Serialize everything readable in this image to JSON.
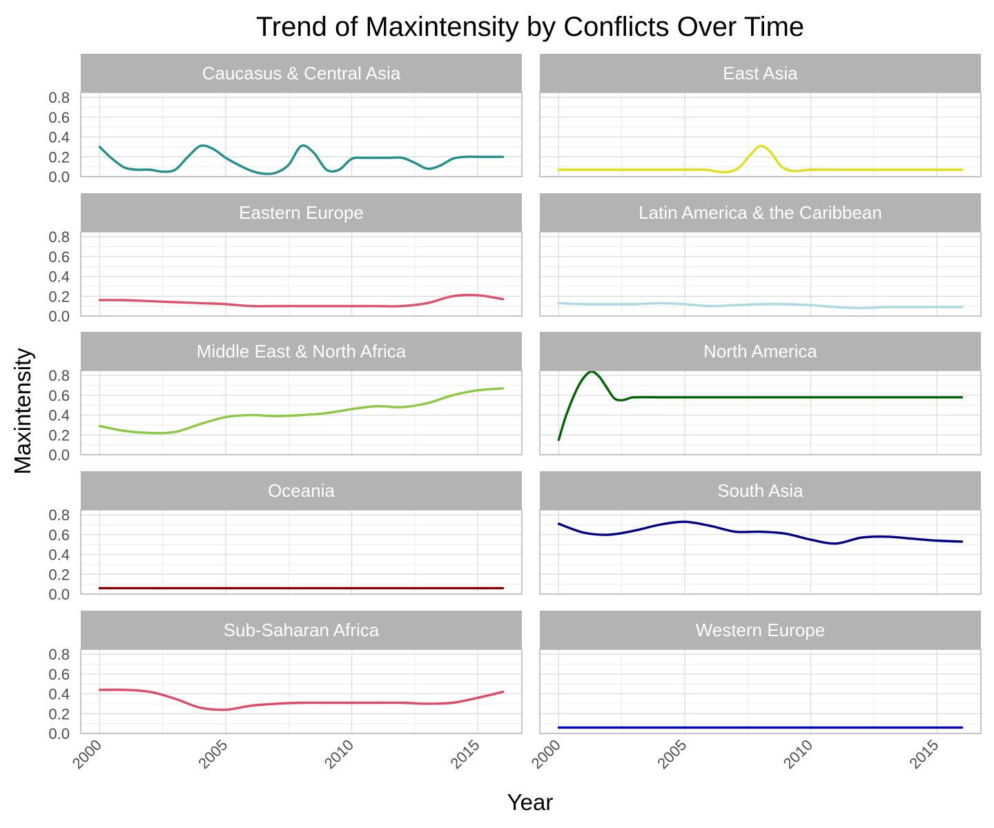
{
  "chart_data": {
    "type": "line",
    "title": "Trend of Maxintensity by Conflicts Over Time",
    "xlabel": "Year",
    "ylabel": "Maxintensity",
    "x_ticks": [
      2000,
      2005,
      2010,
      2015
    ],
    "y_ticks": [
      "0.0",
      "0.2",
      "0.4",
      "0.6",
      "0.8"
    ],
    "xlim": [
      1999.25,
      2016.75
    ],
    "ylim": [
      0,
      0.85
    ],
    "grid": true,
    "legend": "none",
    "facets": [
      {
        "name": "Caucasus & Central Asia",
        "color": "#21908C",
        "x": [
          2000,
          2000.5,
          2001,
          2001.5,
          2002,
          2002.5,
          2003,
          2003.5,
          2004,
          2004.5,
          2005,
          2005.5,
          2006,
          2006.5,
          2007,
          2007.5,
          2008,
          2008.5,
          2009,
          2009.5,
          2010,
          2010.5,
          2011,
          2011.5,
          2012,
          2012.5,
          2013,
          2013.5,
          2014,
          2014.5,
          2015,
          2015.5,
          2016
        ],
        "y": [
          0.3,
          0.18,
          0.09,
          0.07,
          0.07,
          0.05,
          0.07,
          0.2,
          0.31,
          0.28,
          0.19,
          0.12,
          0.06,
          0.03,
          0.04,
          0.12,
          0.31,
          0.24,
          0.07,
          0.07,
          0.18,
          0.19,
          0.19,
          0.19,
          0.19,
          0.14,
          0.08,
          0.11,
          0.18,
          0.2,
          0.2,
          0.2,
          0.2
        ]
      },
      {
        "name": "East Asia",
        "color": "#E0DF1A",
        "x": [
          2000,
          2001,
          2002,
          2003,
          2004,
          2005,
          2005.8,
          2006.3,
          2006.8,
          2007.2,
          2007.6,
          2008,
          2008.4,
          2008.8,
          2009.2,
          2009.6,
          2010,
          2011,
          2012,
          2013,
          2014,
          2015,
          2016
        ],
        "y": [
          0.07,
          0.07,
          0.07,
          0.07,
          0.07,
          0.07,
          0.07,
          0.05,
          0.05,
          0.1,
          0.22,
          0.31,
          0.25,
          0.11,
          0.06,
          0.06,
          0.07,
          0.07,
          0.07,
          0.07,
          0.07,
          0.07,
          0.07
        ]
      },
      {
        "name": "Eastern Europe",
        "color": "#E0506A",
        "x": [
          2000,
          2001,
          2002,
          2003,
          2004,
          2005,
          2006,
          2007,
          2008,
          2009,
          2010,
          2011,
          2012,
          2013,
          2014,
          2015,
          2016
        ],
        "y": [
          0.16,
          0.16,
          0.15,
          0.14,
          0.13,
          0.12,
          0.1,
          0.1,
          0.1,
          0.1,
          0.1,
          0.1,
          0.1,
          0.13,
          0.2,
          0.21,
          0.17
        ]
      },
      {
        "name": "Latin America & the Caribbean",
        "color": "#ADD8E6",
        "x": [
          2000,
          2001,
          2002,
          2003,
          2004,
          2005,
          2006,
          2007,
          2008,
          2009,
          2010,
          2011,
          2012,
          2013,
          2014,
          2015,
          2016
        ],
        "y": [
          0.13,
          0.12,
          0.12,
          0.12,
          0.13,
          0.12,
          0.1,
          0.11,
          0.12,
          0.12,
          0.11,
          0.09,
          0.08,
          0.09,
          0.09,
          0.09,
          0.09
        ]
      },
      {
        "name": "Middle East & North Africa",
        "color": "#8BC93F",
        "x": [
          2000,
          2001,
          2002,
          2003,
          2004,
          2005,
          2006,
          2007,
          2008,
          2009,
          2010,
          2011,
          2012,
          2013,
          2014,
          2015,
          2016
        ],
        "y": [
          0.29,
          0.24,
          0.22,
          0.23,
          0.31,
          0.38,
          0.4,
          0.39,
          0.4,
          0.42,
          0.46,
          0.49,
          0.48,
          0.52,
          0.6,
          0.65,
          0.67
        ]
      },
      {
        "name": "North America",
        "color": "#006400",
        "x": [
          2000,
          2000.3,
          2000.7,
          2001,
          2001.3,
          2001.6,
          2001.9,
          2002.2,
          2002.5,
          2002.8,
          2003,
          2004,
          2005,
          2006,
          2007,
          2008,
          2009,
          2010,
          2011,
          2012,
          2013,
          2014,
          2015,
          2016
        ],
        "y": [
          0.15,
          0.4,
          0.65,
          0.78,
          0.84,
          0.79,
          0.68,
          0.57,
          0.55,
          0.57,
          0.58,
          0.58,
          0.58,
          0.58,
          0.58,
          0.58,
          0.58,
          0.58,
          0.58,
          0.58,
          0.58,
          0.58,
          0.58,
          0.58
        ]
      },
      {
        "name": "Oceania",
        "color": "#8B0000",
        "x": [
          2000,
          2016
        ],
        "y": [
          0.06,
          0.06
        ]
      },
      {
        "name": "South Asia",
        "color": "#00008B",
        "x": [
          2000,
          2001,
          2002,
          2003,
          2004,
          2005,
          2006,
          2007,
          2008,
          2009,
          2010,
          2011,
          2012,
          2013,
          2014,
          2015,
          2016
        ],
        "y": [
          0.71,
          0.62,
          0.6,
          0.64,
          0.7,
          0.73,
          0.69,
          0.63,
          0.63,
          0.61,
          0.55,
          0.51,
          0.57,
          0.58,
          0.56,
          0.54,
          0.53
        ]
      },
      {
        "name": "Sub-Saharan Africa",
        "color": "#E04A66",
        "x": [
          2000,
          2001,
          2002,
          2003,
          2004,
          2005,
          2006,
          2007,
          2008,
          2009,
          2010,
          2011,
          2012,
          2013,
          2014,
          2015,
          2016
        ],
        "y": [
          0.44,
          0.44,
          0.42,
          0.35,
          0.26,
          0.24,
          0.28,
          0.3,
          0.31,
          0.31,
          0.31,
          0.31,
          0.31,
          0.3,
          0.31,
          0.36,
          0.42
        ]
      },
      {
        "name": "Western Europe",
        "color": "#0000CD",
        "x": [
          2000,
          2016
        ],
        "y": [
          0.06,
          0.06
        ]
      }
    ]
  }
}
